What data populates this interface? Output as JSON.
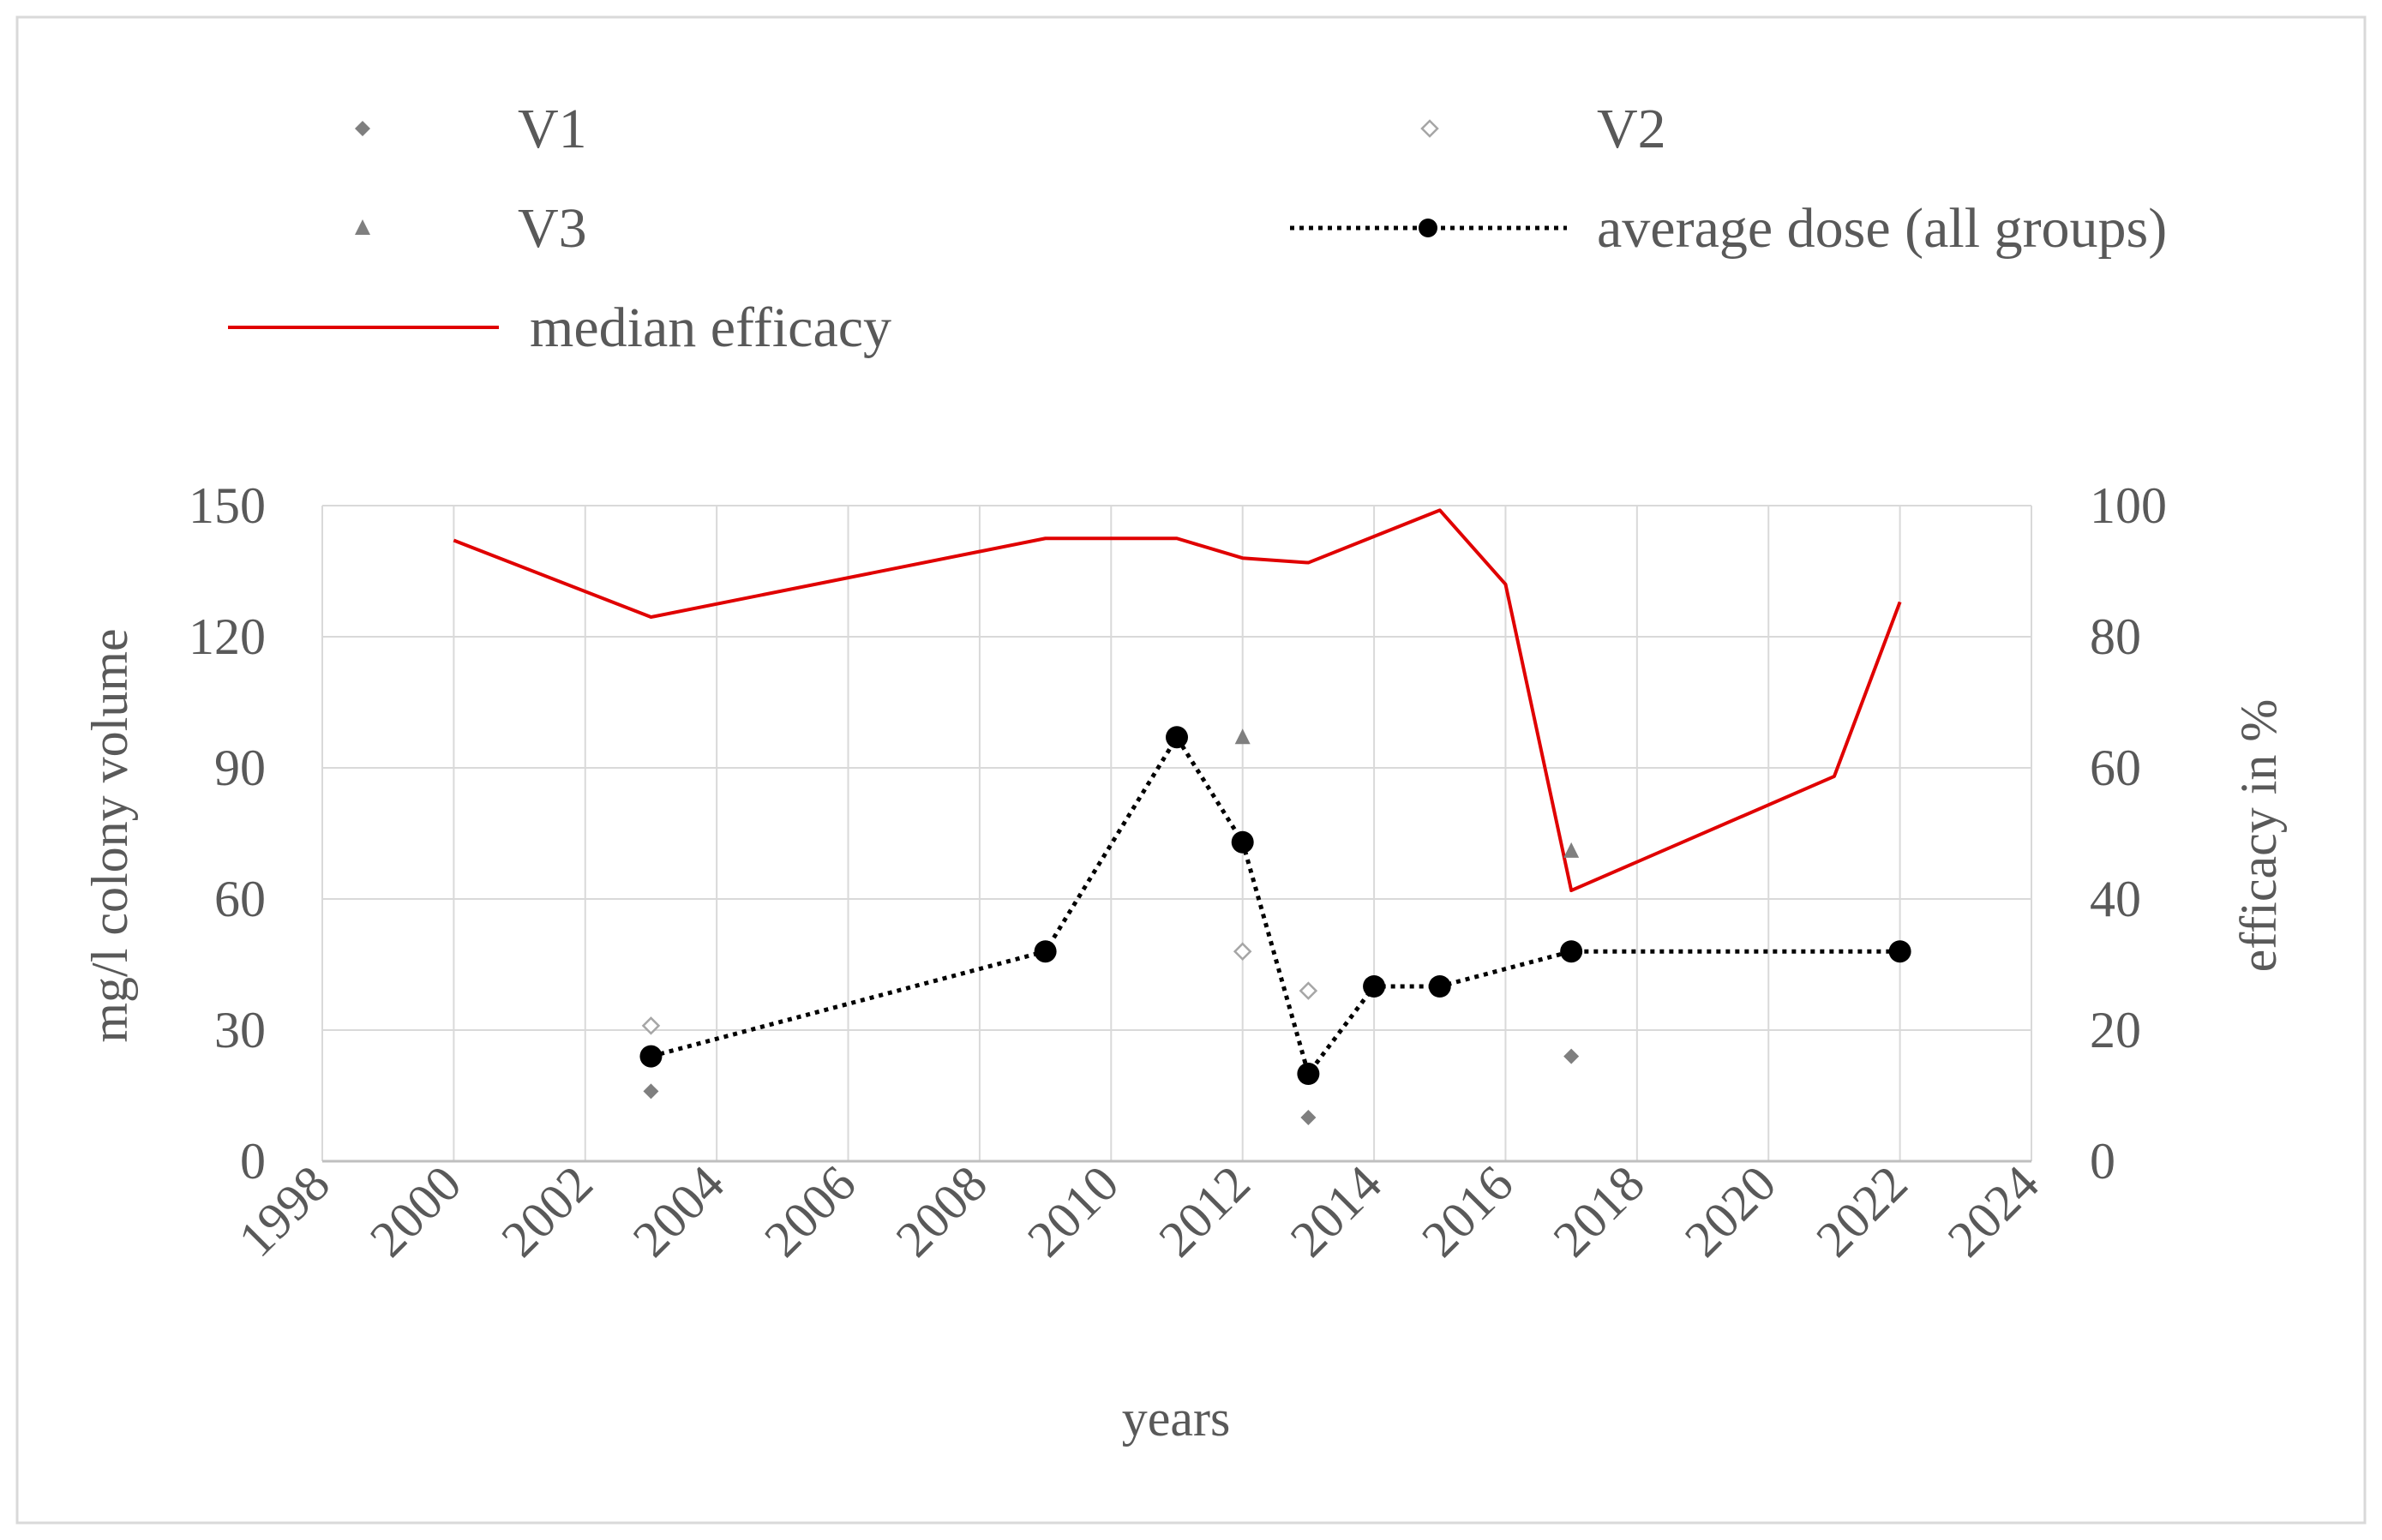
{
  "chart_data": {
    "type": "line",
    "title": "",
    "xlabel": "years",
    "ylabel": "mg/l colony volume",
    "y2label": "efficacy in %",
    "xlim": [
      1998,
      2024
    ],
    "ylim": [
      0,
      150
    ],
    "y2lim": [
      0,
      100
    ],
    "x_ticks": [
      1998,
      2000,
      2002,
      2004,
      2006,
      2008,
      2010,
      2012,
      2014,
      2016,
      2018,
      2020,
      2022,
      2024
    ],
    "y_ticks": [
      0,
      30,
      60,
      90,
      120,
      150
    ],
    "y2_ticks": [
      0,
      20,
      40,
      60,
      80,
      100
    ],
    "grid": true,
    "legend_position": "top",
    "series": [
      {
        "name": "V1",
        "kind": "scatter",
        "axis": "left",
        "marker": "diamond-filled",
        "color": "#7f7f7f",
        "points": [
          [
            2003,
            16
          ],
          [
            2013,
            10
          ],
          [
            2017,
            24
          ]
        ]
      },
      {
        "name": "V2",
        "kind": "scatter",
        "axis": "left",
        "marker": "diamond-open",
        "color": "#a6a6a6",
        "points": [
          [
            2003,
            31
          ],
          [
            2012,
            48
          ],
          [
            2013,
            39
          ]
        ]
      },
      {
        "name": "V3",
        "kind": "scatter",
        "axis": "left",
        "marker": "triangle-filled",
        "color": "#7f7f7f",
        "points": [
          [
            2012,
            97
          ],
          [
            2017,
            71
          ]
        ]
      },
      {
        "name": "average dose (all groups)",
        "kind": "line",
        "axis": "left",
        "style": "dotted-with-markers",
        "color": "#000000",
        "points": [
          [
            2003,
            24
          ],
          [
            2009,
            48
          ],
          [
            2011,
            97
          ],
          [
            2012,
            73
          ],
          [
            2013,
            20
          ],
          [
            2014,
            40
          ],
          [
            2015,
            40
          ],
          [
            2017,
            48
          ],
          [
            2022,
            48
          ]
        ]
      },
      {
        "name": "median efficacy",
        "kind": "line",
        "axis": "right",
        "style": "solid",
        "color": "#e00000",
        "points": [
          [
            2000,
            94.7
          ],
          [
            2003,
            83
          ],
          [
            2009,
            95
          ],
          [
            2011,
            95
          ],
          [
            2012,
            92
          ],
          [
            2013,
            91.3
          ],
          [
            2015,
            99.3
          ],
          [
            2016,
            88
          ],
          [
            2017,
            41.3
          ],
          [
            2021,
            58.7
          ],
          [
            2022,
            85.3
          ]
        ]
      }
    ]
  }
}
